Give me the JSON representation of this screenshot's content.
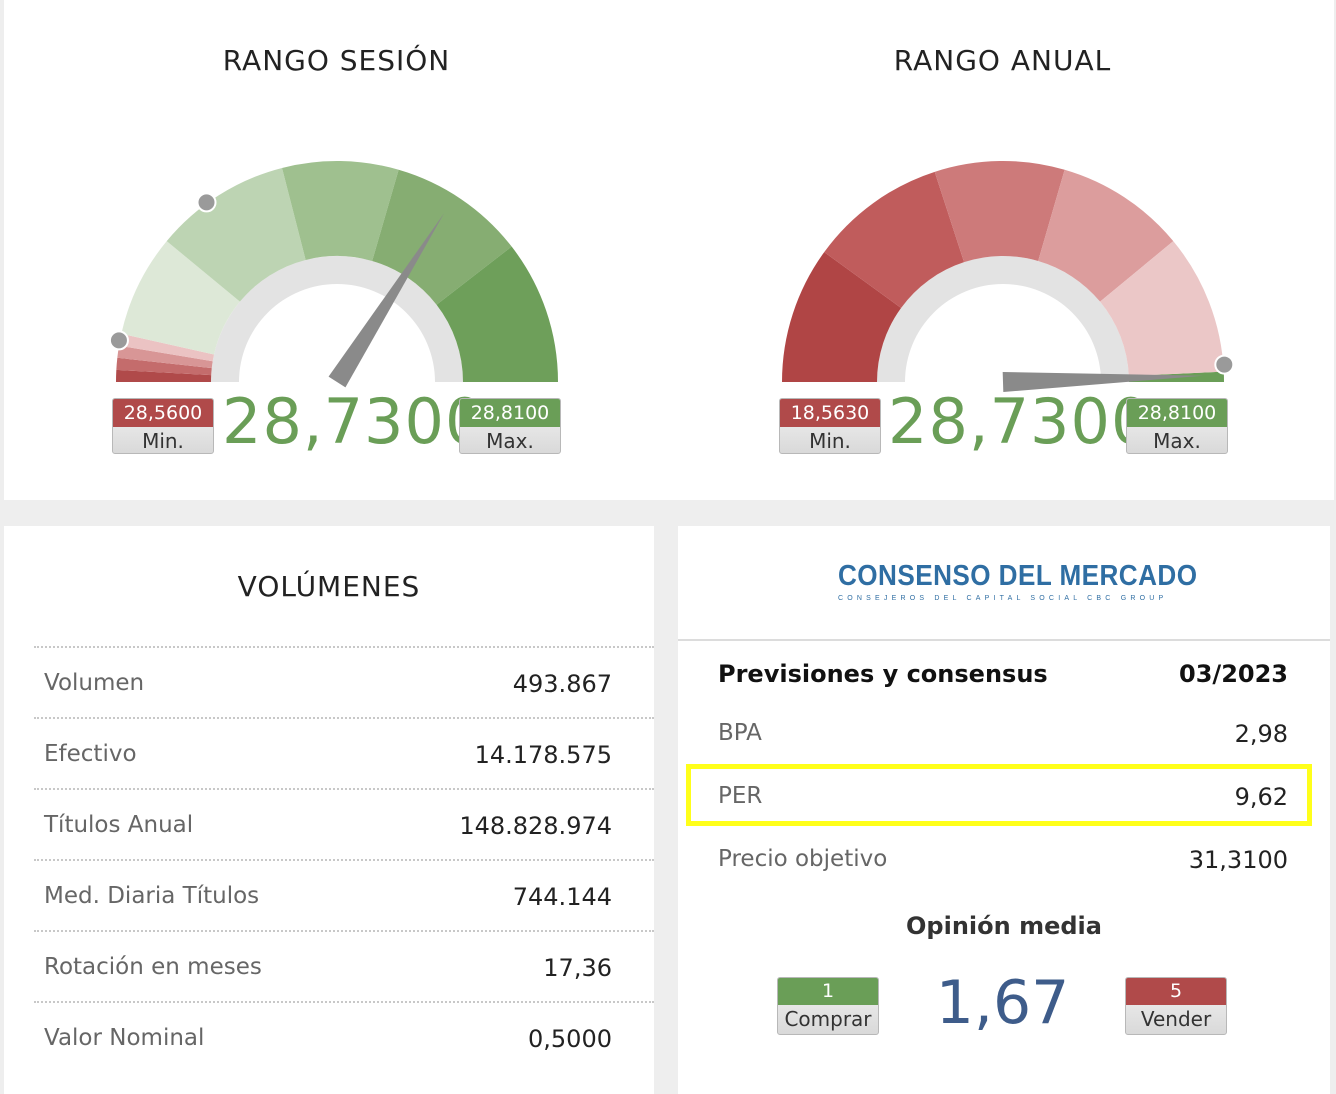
{
  "session_range": {
    "title": "RANGO SESIÓN",
    "min_value": "28,5600",
    "min_label": "Min.",
    "max_value": "28,8100",
    "max_label": "Max.",
    "price": "28,7300",
    "needle_fraction": 0.68
  },
  "annual_range": {
    "title": "RANGO ANUAL",
    "min_value": "18,5630",
    "min_label": "Min.",
    "max_value": "28,8100",
    "max_label": "Max.",
    "price": "28,7300",
    "needle_fraction": 0.99
  },
  "volumes": {
    "title": "VOLÚMENES",
    "rows": [
      {
        "label": "Volumen",
        "value": "493.867"
      },
      {
        "label": "Efectivo",
        "value": "14.178.575"
      },
      {
        "label": "Títulos Anual",
        "value": "148.828.974"
      },
      {
        "label": "Med. Diaria Títulos",
        "value": "744.144"
      },
      {
        "label": "Rotación en meses",
        "value": "17,36"
      },
      {
        "label": "Valor Nominal",
        "value": "0,5000"
      }
    ]
  },
  "consensus": {
    "logo_title": "CONSENSO DEL MERCADO",
    "logo_subtitle": "CONSEJEROS DEL CAPITAL SOCIAL CBC GROUP",
    "heading": "Previsiones y consensus",
    "date": "03/2023",
    "rows": [
      {
        "label": "BPA",
        "value": "2,98"
      },
      {
        "label": "PER",
        "value": "9,62"
      },
      {
        "label": "Precio objetivo",
        "value": "31,3100"
      }
    ],
    "opinion_title": "Opinión media",
    "opinion_value": "1,67",
    "buy_value": "1",
    "buy_label": "Comprar",
    "sell_value": "5",
    "sell_label": "Vender"
  },
  "colors": {
    "green": "#6a9e57",
    "red": "#b04a4a",
    "highlight": "#ffff1a",
    "opinion": "#3e5c8a"
  }
}
